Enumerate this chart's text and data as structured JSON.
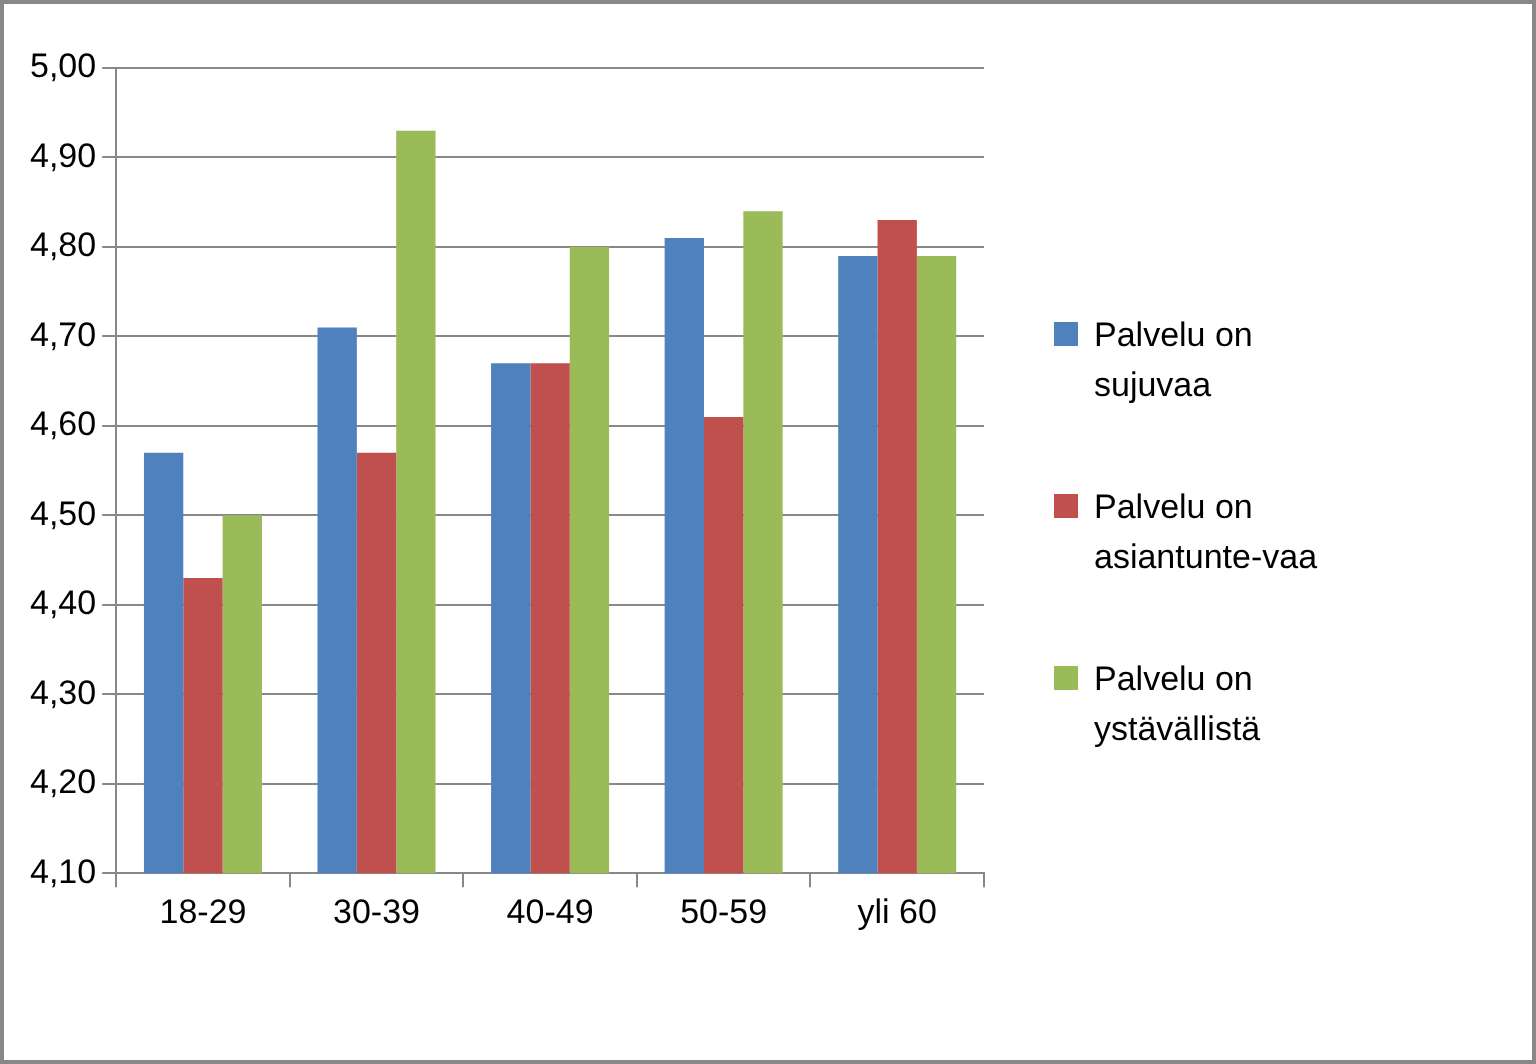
{
  "chart_data": {
    "type": "bar",
    "categories": [
      "18-29",
      "30-39",
      "40-49",
      "50-59",
      "yli 60"
    ],
    "series": [
      {
        "name": "Palvelu on sujuvaa",
        "color": "#4f81bd",
        "values": [
          4.57,
          4.71,
          4.67,
          4.81,
          4.79
        ]
      },
      {
        "name": "Palvelu on asiantunte-vaa",
        "color": "#c0504d",
        "values": [
          4.43,
          4.57,
          4.67,
          4.61,
          4.83
        ]
      },
      {
        "name": "Palvelu on ystävällistä",
        "color": "#9bbb59",
        "values": [
          4.5,
          4.93,
          4.8,
          4.84,
          4.79
        ]
      }
    ],
    "ylim": [
      4.1,
      5.0
    ],
    "yticks": [
      {
        "value": 4.1,
        "label": "4,10"
      },
      {
        "value": 4.2,
        "label": "4,20"
      },
      {
        "value": 4.3,
        "label": "4,30"
      },
      {
        "value": 4.4,
        "label": "4,40"
      },
      {
        "value": 4.5,
        "label": "4,50"
      },
      {
        "value": 4.6,
        "label": "4,60"
      },
      {
        "value": 4.7,
        "label": "4,70"
      },
      {
        "value": 4.8,
        "label": "4,80"
      },
      {
        "value": 4.9,
        "label": "4,90"
      },
      {
        "value": 5.0,
        "label": "5,00"
      }
    ],
    "grid": "y",
    "legend": "right"
  }
}
